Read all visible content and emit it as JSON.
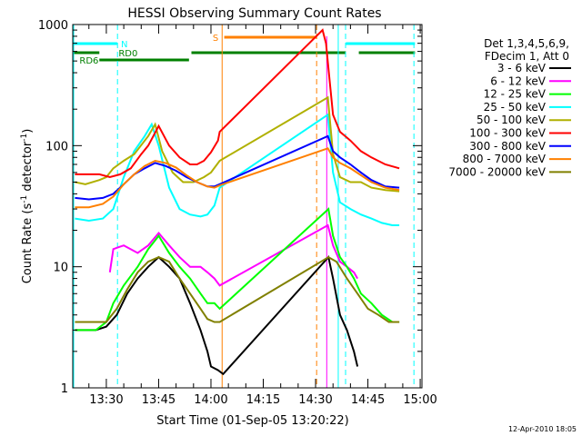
{
  "chart_data": {
    "type": "line",
    "title": "HESSI Observing Summary Count Rates",
    "xlabel": "Start Time (01-Sep-05 13:20:22)",
    "ylabel": "Count Rate (s",
    "ylabel_sup": "-1",
    "ylabel_mid": " detector",
    "ylabel_end": ")",
    "y_scale": "log",
    "ylim": [
      1,
      1000
    ],
    "xlim_minutes": [
      20.37,
      120.5
    ],
    "yticks": [
      {
        "v": 1,
        "label": "1"
      },
      {
        "v": 10,
        "label": "10"
      },
      {
        "v": 100,
        "label": "100"
      },
      {
        "v": 1000,
        "label": "1000"
      }
    ],
    "xticks": [
      {
        "m": 30,
        "label": "13:30"
      },
      {
        "m": 45,
        "label": "13:45"
      },
      {
        "m": 60,
        "label": "14:00"
      },
      {
        "m": 75,
        "label": "14:15"
      },
      {
        "m": 90,
        "label": "14:30"
      },
      {
        "m": 105,
        "label": "14:45"
      },
      {
        "m": 120,
        "label": "15:00"
      }
    ],
    "legend_header": [
      "Det 1,3,4,5,6,9,",
      "FDecim 1, Att 0"
    ],
    "legend_placement": "right",
    "series": [
      {
        "name": "3 - 6 keV",
        "color": "#000000",
        "points": [
          [
            21,
            3
          ],
          [
            27,
            3
          ],
          [
            30,
            3.2
          ],
          [
            33,
            4
          ],
          [
            36,
            6
          ],
          [
            39,
            8
          ],
          [
            42,
            10
          ],
          [
            45,
            12
          ],
          [
            48,
            10
          ],
          [
            51,
            8
          ],
          [
            54,
            5
          ],
          [
            57,
            3
          ],
          [
            59,
            2
          ],
          [
            60,
            1.5
          ],
          [
            62,
            1.4
          ],
          [
            63.5,
            1.3
          ],
          [
            93.7,
            12
          ],
          [
            95,
            8
          ],
          [
            97,
            4
          ],
          [
            99,
            3
          ],
          [
            101,
            2
          ],
          [
            102,
            1.5
          ]
        ]
      },
      {
        "name": "6 - 12 keV",
        "color": "#ff00ff",
        "points": [
          [
            31,
            9
          ],
          [
            32,
            14
          ],
          [
            35,
            15
          ],
          [
            39,
            13
          ],
          [
            42,
            15
          ],
          [
            45,
            19
          ],
          [
            48,
            15
          ],
          [
            51,
            12
          ],
          [
            54,
            10
          ],
          [
            57,
            10
          ],
          [
            59,
            9
          ],
          [
            61,
            8
          ],
          [
            62.5,
            7
          ],
          [
            93.5,
            22
          ],
          [
            95,
            15
          ],
          [
            97,
            11
          ],
          [
            99,
            10
          ],
          [
            101,
            9
          ],
          [
            102,
            8
          ]
        ]
      },
      {
        "name": "12 - 25 keV",
        "color": "#00ff00",
        "points": [
          [
            21,
            3
          ],
          [
            27,
            3
          ],
          [
            30,
            3.5
          ],
          [
            32,
            5
          ],
          [
            35,
            7
          ],
          [
            39,
            10
          ],
          [
            42,
            14
          ],
          [
            45,
            18
          ],
          [
            48,
            13
          ],
          [
            51,
            10
          ],
          [
            54,
            8
          ],
          [
            57,
            6
          ],
          [
            59,
            5
          ],
          [
            61,
            5
          ],
          [
            62.5,
            4.5
          ],
          [
            93.7,
            30
          ],
          [
            95,
            18
          ],
          [
            97,
            12
          ],
          [
            99,
            10
          ],
          [
            101,
            8
          ],
          [
            103,
            6
          ],
          [
            106,
            5
          ],
          [
            109,
            4
          ],
          [
            112,
            3.5
          ],
          [
            114,
            3.5
          ]
        ]
      },
      {
        "name": "25 - 50 keV",
        "color": "#00ffff",
        "points": [
          [
            21,
            25
          ],
          [
            25,
            24
          ],
          [
            29,
            25
          ],
          [
            32,
            30
          ],
          [
            35,
            55
          ],
          [
            38,
            90
          ],
          [
            41,
            120
          ],
          [
            43,
            150
          ],
          [
            45,
            100
          ],
          [
            48,
            45
          ],
          [
            51,
            30
          ],
          [
            54,
            27
          ],
          [
            57,
            26
          ],
          [
            59,
            27
          ],
          [
            61,
            32
          ],
          [
            62.5,
            45
          ],
          [
            93.5,
            180
          ],
          [
            95,
            60
          ],
          [
            97,
            34
          ],
          [
            100,
            30
          ],
          [
            103,
            27
          ],
          [
            106,
            25
          ],
          [
            109,
            23
          ],
          [
            112,
            22
          ],
          [
            114,
            22
          ]
        ]
      },
      {
        "name": "50 - 100 keV",
        "color": "#b0b000",
        "points": [
          [
            21,
            50
          ],
          [
            24,
            48
          ],
          [
            28,
            52
          ],
          [
            30,
            55
          ],
          [
            32,
            65
          ],
          [
            35,
            75
          ],
          [
            38,
            85
          ],
          [
            42,
            120
          ],
          [
            44,
            150
          ],
          [
            46,
            90
          ],
          [
            49,
            60
          ],
          [
            52,
            50
          ],
          [
            55,
            50
          ],
          [
            58,
            55
          ],
          [
            60,
            60
          ],
          [
            62.5,
            75
          ],
          [
            93.5,
            250
          ],
          [
            95,
            85
          ],
          [
            97,
            55
          ],
          [
            100,
            50
          ],
          [
            103,
            50
          ],
          [
            106,
            45
          ],
          [
            110,
            43
          ],
          [
            114,
            42
          ]
        ]
      },
      {
        "name": "100 - 300 keV",
        "color": "#ff0000",
        "points": [
          [
            21,
            58
          ],
          [
            25,
            58
          ],
          [
            28,
            58
          ],
          [
            31,
            55
          ],
          [
            34,
            58
          ],
          [
            37,
            65
          ],
          [
            40,
            85
          ],
          [
            42,
            100
          ],
          [
            45,
            145
          ],
          [
            48,
            100
          ],
          [
            51,
            80
          ],
          [
            54,
            70
          ],
          [
            56,
            70
          ],
          [
            58,
            75
          ],
          [
            60,
            88
          ],
          [
            62,
            110
          ],
          [
            62.5,
            130
          ],
          [
            92,
            900
          ],
          [
            93,
            700
          ],
          [
            94,
            350
          ],
          [
            95,
            180
          ],
          [
            97,
            130
          ],
          [
            100,
            110
          ],
          [
            103,
            90
          ],
          [
            106,
            80
          ],
          [
            110,
            70
          ],
          [
            114,
            65
          ]
        ]
      },
      {
        "name": "300 - 800 keV",
        "color": "#0000ff",
        "points": [
          [
            21,
            37
          ],
          [
            25,
            36
          ],
          [
            29,
            37
          ],
          [
            32,
            40
          ],
          [
            35,
            48
          ],
          [
            38,
            58
          ],
          [
            41,
            65
          ],
          [
            44,
            72
          ],
          [
            47,
            68
          ],
          [
            50,
            62
          ],
          [
            53,
            55
          ],
          [
            56,
            50
          ],
          [
            59,
            46
          ],
          [
            61,
            46
          ],
          [
            62.5,
            48
          ],
          [
            93.5,
            120
          ],
          [
            95,
            90
          ],
          [
            97,
            80
          ],
          [
            100,
            70
          ],
          [
            103,
            60
          ],
          [
            106,
            52
          ],
          [
            110,
            46
          ],
          [
            114,
            45
          ]
        ]
      },
      {
        "name": "800 - 7000 keV",
        "color": "#ff8000",
        "points": [
          [
            21,
            31
          ],
          [
            25,
            31
          ],
          [
            29,
            33
          ],
          [
            32,
            38
          ],
          [
            35,
            48
          ],
          [
            38,
            58
          ],
          [
            41,
            68
          ],
          [
            44,
            75
          ],
          [
            47,
            72
          ],
          [
            50,
            66
          ],
          [
            53,
            57
          ],
          [
            56,
            50
          ],
          [
            59,
            46
          ],
          [
            61,
            45
          ],
          [
            62.5,
            47
          ],
          [
            93.5,
            95
          ],
          [
            95,
            80
          ],
          [
            97,
            72
          ],
          [
            100,
            65
          ],
          [
            103,
            57
          ],
          [
            106,
            50
          ],
          [
            110,
            45
          ],
          [
            114,
            43
          ]
        ]
      },
      {
        "name": "7000 - 20000 keV",
        "color": "#808000",
        "points": [
          [
            21,
            3.5
          ],
          [
            27,
            3.5
          ],
          [
            30,
            3.5
          ],
          [
            33,
            4.5
          ],
          [
            36,
            6.5
          ],
          [
            39,
            9
          ],
          [
            42,
            11
          ],
          [
            45,
            12
          ],
          [
            48,
            11
          ],
          [
            51,
            8
          ],
          [
            54,
            6
          ],
          [
            57,
            4.5
          ],
          [
            59,
            3.7
          ],
          [
            61,
            3.5
          ],
          [
            62.5,
            3.5
          ],
          [
            93.7,
            12
          ],
          [
            96,
            11
          ],
          [
            99,
            8
          ],
          [
            102,
            6
          ],
          [
            105,
            4.5
          ],
          [
            108,
            4
          ],
          [
            111,
            3.5
          ],
          [
            114,
            3.5
          ]
        ]
      }
    ],
    "markers": {
      "dashed_cyan_minutes": [
        33.2,
        98.6,
        118.2
      ],
      "solid_cyan_minutes": [
        96.5
      ],
      "dashed_orange_minutes": [
        90.3
      ],
      "solid_orange_minutes": [
        63.2
      ],
      "solid_magenta_minutes": [
        93.2
      ]
    },
    "flag_bars": [
      {
        "label": "N",
        "color": "#00ffff",
        "segments": [
          [
            20.4,
            33.1
          ],
          [
            98.7,
            118.5
          ]
        ]
      },
      {
        "label": "S",
        "color": "#ff8000",
        "segments": [
          [
            63.8,
            90.3
          ]
        ]
      },
      {
        "label": "RD0",
        "color": "#008000",
        "segments": [
          [
            20.4,
            28
          ],
          [
            54.4,
            98.7
          ],
          [
            102.4,
            118.5
          ]
        ]
      },
      {
        "label": "RD6",
        "color": "#008000",
        "segments": [
          [
            28,
            53.7
          ]
        ]
      }
    ]
  },
  "footer_stamp": "12-Apr-2010 18:05"
}
